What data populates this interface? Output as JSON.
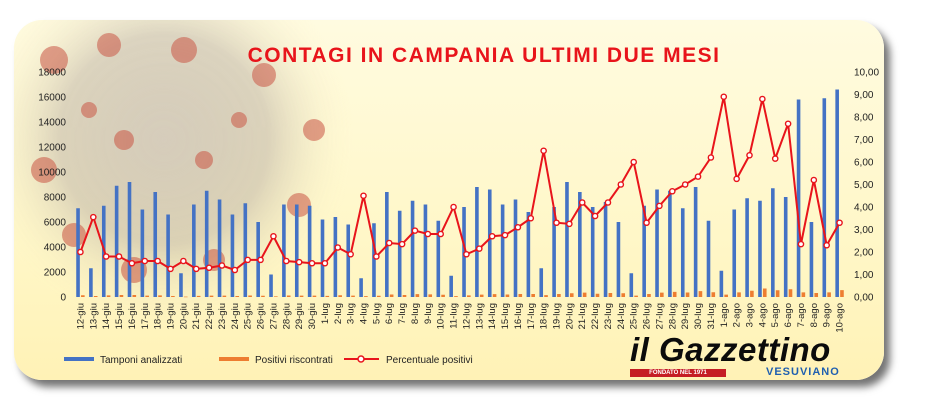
{
  "chart_data": {
    "type": "bar",
    "title": "CONTAGI IN CAMPANIA ULTIMI DUE MESI",
    "categories": [
      "12-giu",
      "13-giu",
      "14-giu",
      "15-giu",
      "16-giu",
      "17-giu",
      "18-giu",
      "19-giu",
      "20-giu",
      "21-giu",
      "22-giu",
      "23-giu",
      "24-giu",
      "25-giu",
      "26-giu",
      "27-giu",
      "28-giu",
      "29-giu",
      "30-giu",
      "1-lug",
      "2-lug",
      "3-lug",
      "4-lug",
      "5-lug",
      "6-lug",
      "7-lug",
      "8-lug",
      "9-lug",
      "10-lug",
      "11-lug",
      "12-lug",
      "13-lug",
      "14-lug",
      "15-lug",
      "16-lug",
      "17-lug",
      "18-lug",
      "19-lug",
      "20-lug",
      "21-lug",
      "22-lug",
      "23-lug",
      "24-lug",
      "25-lug",
      "26-lug",
      "27-lug",
      "28-lug",
      "29-lug",
      "30-lug",
      "31-lug",
      "1-ago",
      "2-ago",
      "3-ago",
      "4-ago",
      "5-ago",
      "6-ago",
      "7-ago",
      "8-ago",
      "9-ago",
      "10-ago"
    ],
    "series": [
      {
        "name": "Tamponi analizzati",
        "color": "#4472c4",
        "axis": "left",
        "values": [
          7100,
          2300,
          7300,
          8900,
          9200,
          7000,
          8400,
          6600,
          1900,
          7400,
          8500,
          7800,
          6600,
          7500,
          6000,
          1800,
          7400,
          7400,
          7300,
          6200,
          6400,
          5800,
          1500,
          5900,
          8400,
          6900,
          7700,
          7400,
          6100,
          1700,
          7200,
          8800,
          8600,
          7400,
          7800,
          6800,
          2300,
          7200,
          9200,
          8400,
          7200,
          7600,
          6000,
          1900,
          7300,
          8600,
          8500,
          7100,
          8800,
          6100,
          2100,
          7000,
          7900,
          7700,
          8700,
          8000,
          15800,
          6000,
          15900,
          16600
        ]
      },
      {
        "name": "Positivi riscontrati",
        "color": "#ed7d31",
        "axis": "left",
        "values": [
          140,
          80,
          130,
          160,
          160,
          110,
          130,
          80,
          30,
          90,
          110,
          110,
          80,
          120,
          100,
          50,
          120,
          110,
          110,
          90,
          140,
          110,
          70,
          100,
          200,
          160,
          230,
          210,
          180,
          70,
          130,
          190,
          230,
          200,
          240,
          240,
          150,
          240,
          300,
          350,
          260,
          320,
          300,
          110,
          240,
          350,
          410,
          360,
          470,
          380,
          190,
          370,
          500,
          680,
          540,
          620,
          370,
          320,
          370,
          550
        ]
      },
      {
        "name": "Percentuale positivi",
        "color": "#e8141b",
        "axis": "right",
        "values": [
          2.0,
          3.55,
          1.8,
          1.8,
          1.5,
          1.6,
          1.6,
          1.25,
          1.6,
          1.25,
          1.3,
          1.4,
          1.2,
          1.65,
          1.65,
          2.7,
          1.6,
          1.55,
          1.5,
          1.5,
          2.2,
          1.9,
          4.5,
          1.8,
          2.4,
          2.35,
          2.95,
          2.8,
          2.8,
          4.0,
          1.9,
          2.15,
          2.7,
          2.75,
          3.1,
          3.5,
          6.5,
          3.3,
          3.25,
          4.2,
          3.6,
          4.2,
          5.0,
          6.0,
          3.3,
          4.05,
          4.7,
          5.0,
          5.35,
          6.2,
          8.9,
          5.25,
          6.3,
          8.8,
          6.15,
          7.7,
          2.35,
          5.2,
          2.3,
          3.3
        ]
      }
    ],
    "y_left": {
      "min": 0,
      "max": 18000,
      "step": 2000,
      "ticks": [
        "0",
        "2000",
        "4000",
        "6000",
        "8000",
        "10000",
        "12000",
        "14000",
        "16000",
        "18000"
      ]
    },
    "y_right": {
      "min": 0,
      "max": 10,
      "step": 1,
      "ticks": [
        "0,00",
        "1,00",
        "2,00",
        "3,00",
        "4,00",
        "5,00",
        "6,00",
        "7,00",
        "8,00",
        "9,00",
        "10,00"
      ]
    },
    "legend_position": "bottom-left",
    "grid": false
  },
  "legend": {
    "tamponi": "Tamponi analizzati",
    "positivi": "Positivi riscontrati",
    "percentuale": "Percentuale positivi"
  },
  "logo": {
    "name": "il Gazzettino",
    "founded": "FONDATO NEL 1971",
    "subtitle": "VESUVIANO"
  },
  "colors": {
    "background": "#fff7c8",
    "title": "#e8141b",
    "logo_red": "#c51d24",
    "logo_blue": "#1f5fb0"
  }
}
